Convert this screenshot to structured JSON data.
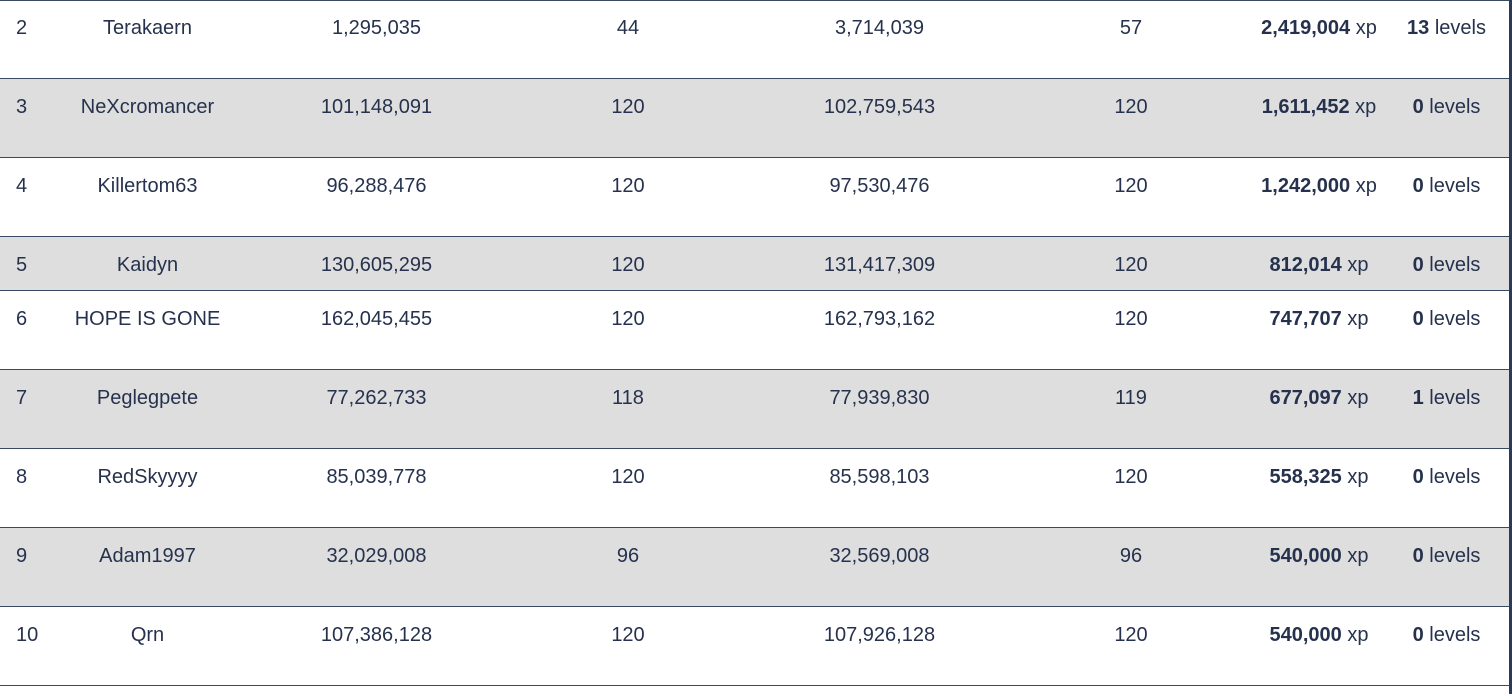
{
  "rows": [
    {
      "rank": "2",
      "name": "Terakaern",
      "start_xp": "1,295,035",
      "start_level": "44",
      "end_xp": "3,714,039",
      "end_level": "57",
      "gained_xp": "2,419,004",
      "xp_unit": "xp",
      "gained_levels": "13",
      "levels_unit": "levels"
    },
    {
      "rank": "3",
      "name": "NeXcromancer",
      "start_xp": "101,148,091",
      "start_level": "120",
      "end_xp": "102,759,543",
      "end_level": "120",
      "gained_xp": "1,611,452",
      "xp_unit": "xp",
      "gained_levels": "0",
      "levels_unit": "levels"
    },
    {
      "rank": "4",
      "name": "Killertom63",
      "start_xp": "96,288,476",
      "start_level": "120",
      "end_xp": "97,530,476",
      "end_level": "120",
      "gained_xp": "1,242,000",
      "xp_unit": "xp",
      "gained_levels": "0",
      "levels_unit": "levels"
    },
    {
      "rank": "5",
      "name": "Kaidyn",
      "start_xp": "130,605,295",
      "start_level": "120",
      "end_xp": "131,417,309",
      "end_level": "120",
      "gained_xp": "812,014",
      "xp_unit": "xp",
      "gained_levels": "0",
      "levels_unit": "levels"
    },
    {
      "rank": "6",
      "name": "HOPE IS GONE",
      "start_xp": "162,045,455",
      "start_level": "120",
      "end_xp": "162,793,162",
      "end_level": "120",
      "gained_xp": "747,707",
      "xp_unit": "xp",
      "gained_levels": "0",
      "levels_unit": "levels"
    },
    {
      "rank": "7",
      "name": "Peglegpete",
      "start_xp": "77,262,733",
      "start_level": "118",
      "end_xp": "77,939,830",
      "end_level": "119",
      "gained_xp": "677,097",
      "xp_unit": "xp",
      "gained_levels": "1",
      "levels_unit": "levels"
    },
    {
      "rank": "8",
      "name": "RedSkyyyy",
      "start_xp": "85,039,778",
      "start_level": "120",
      "end_xp": "85,598,103",
      "end_level": "120",
      "gained_xp": "558,325",
      "xp_unit": "xp",
      "gained_levels": "0",
      "levels_unit": "levels"
    },
    {
      "rank": "9",
      "name": "Adam1997",
      "start_xp": "32,029,008",
      "start_level": "96",
      "end_xp": "32,569,008",
      "end_level": "96",
      "gained_xp": "540,000",
      "xp_unit": "xp",
      "gained_levels": "0",
      "levels_unit": "levels"
    },
    {
      "rank": "10",
      "name": "Qrn",
      "start_xp": "107,386,128",
      "start_level": "120",
      "end_xp": "107,926,128",
      "end_level": "120",
      "gained_xp": "540,000",
      "xp_unit": "xp",
      "gained_levels": "0",
      "levels_unit": "levels"
    }
  ]
}
